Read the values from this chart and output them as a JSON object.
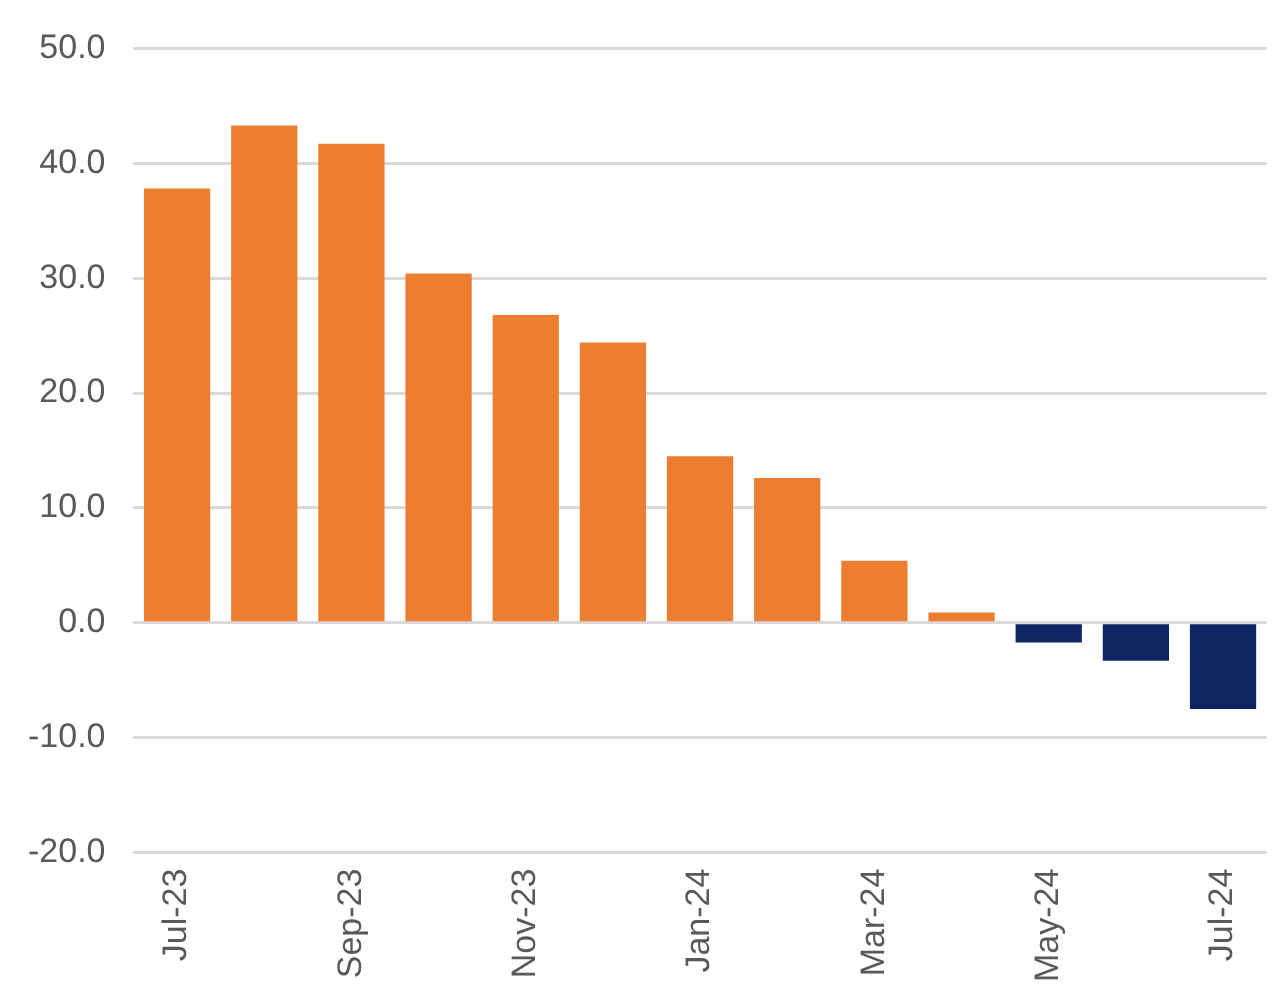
{
  "chart_data": {
    "type": "bar",
    "categories": [
      "Jul-23",
      null,
      "Sep-23",
      null,
      "Nov-23",
      null,
      "Jan-24",
      null,
      "Mar-24",
      null,
      "May-24",
      null,
      "Jul-24"
    ],
    "values": [
      37.8,
      43.3,
      41.7,
      30.4,
      26.8,
      24.4,
      14.5,
      12.6,
      5.4,
      0.9,
      -1.7,
      -3.3,
      -7.5
    ],
    "colors": [
      "#ed7d31",
      "#ed7d31",
      "#ed7d31",
      "#ed7d31",
      "#ed7d31",
      "#ed7d31",
      "#ed7d31",
      "#ed7d31",
      "#ed7d31",
      "#ed7d31",
      "#0f2463",
      "#0f2463",
      "#0f2463"
    ],
    "ylim": [
      -20,
      50
    ],
    "yticks": [
      {
        "value": -20,
        "label": "-20.0"
      },
      {
        "value": -10,
        "label": "-10.0"
      },
      {
        "value": 0,
        "label": "0.0"
      },
      {
        "value": 10,
        "label": "10.0"
      },
      {
        "value": 20,
        "label": "20.0"
      },
      {
        "value": 30,
        "label": "30.0"
      },
      {
        "value": 40,
        "label": "40.0"
      },
      {
        "value": 50,
        "label": "50.0"
      }
    ],
    "grid": "y",
    "legend": false
  }
}
